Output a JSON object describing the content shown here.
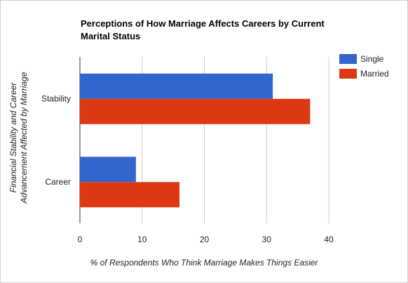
{
  "chart_data": {
    "type": "bar",
    "orientation": "horizontal",
    "title_lines": [
      "Perceptions of How Marriage Affects Careers by Current",
      "Marital Status"
    ],
    "ylabel_lines": [
      "Financial Stability and Career",
      "Advancement Affected by Marriage"
    ],
    "xlabel": "% of Respondents Who Think Marriage Makes Things Easier",
    "categories": [
      "Stability",
      "Career"
    ],
    "series": [
      {
        "name": "Single",
        "color": "#3366cc",
        "values": [
          31,
          9
        ]
      },
      {
        "name": "Married",
        "color": "#dc3912",
        "values": [
          37,
          16
        ]
      }
    ],
    "xlim": [
      0,
      40
    ],
    "xticks": [
      "0",
      "10",
      "20",
      "30",
      "40"
    ],
    "grid": true,
    "legend_position": "right"
  }
}
